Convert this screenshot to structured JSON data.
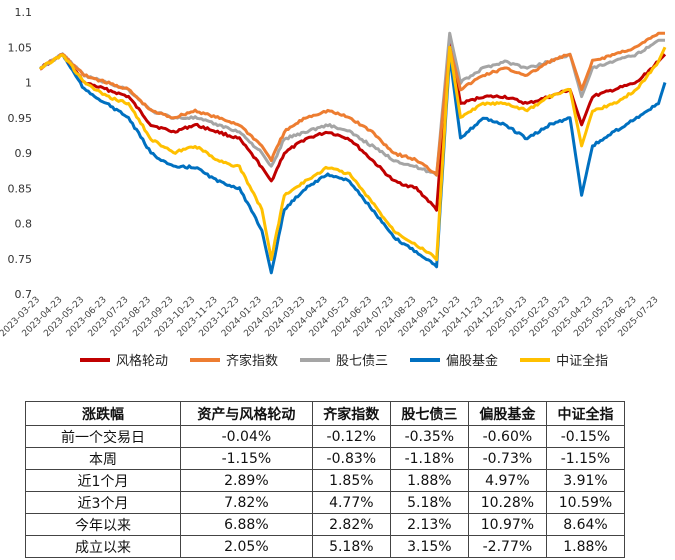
{
  "chart_data": {
    "type": "line",
    "xlabel": "",
    "ylabel": "",
    "ylim": [
      0.7,
      1.1
    ],
    "y_ticks": [
      "0.7",
      "0.75",
      "0.8",
      "0.85",
      "0.9",
      "0.95",
      "1",
      "1.05",
      "1.1"
    ],
    "x_ticks": [
      "2023-03-23",
      "2023-04-23",
      "2023-05-23",
      "2023-06-23",
      "2023-07-23",
      "2023-08-23",
      "2023-09-23",
      "2023-10-23",
      "2023-11-23",
      "2023-12-23",
      "2024-01-23",
      "2024-02-23",
      "2024-03-23",
      "2024-04-23",
      "2024-05-23",
      "2024-06-23",
      "2024-07-23",
      "2024-08-23",
      "2024-09-23",
      "2024-10-23",
      "2024-11-23",
      "2024-12-23",
      "2025-01-23",
      "2025-02-23",
      "2025-03-23",
      "2025-04-23",
      "2025-05-23",
      "2025-06-23",
      "2025-07-23"
    ],
    "x": [
      "2023-03-23",
      "2023-04-23",
      "2023-05-23",
      "2023-06-23",
      "2023-07-23",
      "2023-08-23",
      "2023-09-23",
      "2023-10-23",
      "2023-11-23",
      "2023-12-23",
      "2024-01-23",
      "2024-02-05",
      "2024-02-23",
      "2024-03-23",
      "2024-04-23",
      "2024-05-23",
      "2024-06-23",
      "2024-07-23",
      "2024-08-23",
      "2024-09-20",
      "2024-10-08",
      "2024-10-23",
      "2024-11-23",
      "2024-12-23",
      "2025-01-23",
      "2025-02-23",
      "2025-03-23",
      "2025-04-08",
      "2025-04-23",
      "2025-05-23",
      "2025-06-23",
      "2025-07-23",
      "2025-08-01"
    ],
    "series": [
      {
        "name": "风格轮动",
        "color": "#C00000",
        "values": [
          1.02,
          1.04,
          1.0,
          0.99,
          0.98,
          0.94,
          0.93,
          0.94,
          0.93,
          0.92,
          0.88,
          0.86,
          0.9,
          0.92,
          0.93,
          0.92,
          0.89,
          0.86,
          0.85,
          0.82,
          1.06,
          0.97,
          0.98,
          0.98,
          0.97,
          0.98,
          0.99,
          0.94,
          0.98,
          0.99,
          1.0,
          1.03,
          1.04
        ]
      },
      {
        "name": "齐家指数",
        "color": "#ED7D31",
        "values": [
          1.02,
          1.04,
          1.01,
          1.0,
          0.99,
          0.96,
          0.95,
          0.96,
          0.95,
          0.94,
          0.91,
          0.89,
          0.93,
          0.95,
          0.96,
          0.95,
          0.93,
          0.9,
          0.89,
          0.87,
          1.05,
          0.99,
          1.01,
          1.02,
          1.01,
          1.03,
          1.04,
          0.99,
          1.03,
          1.04,
          1.05,
          1.07,
          1.07
        ]
      },
      {
        "name": "股七债三",
        "color": "#A5A5A5",
        "values": [
          1.02,
          1.04,
          1.01,
          1.0,
          0.99,
          0.96,
          0.95,
          0.95,
          0.94,
          0.93,
          0.9,
          0.88,
          0.92,
          0.93,
          0.94,
          0.93,
          0.91,
          0.89,
          0.88,
          0.87,
          1.07,
          1.0,
          1.02,
          1.03,
          1.02,
          1.03,
          1.04,
          0.98,
          1.02,
          1.03,
          1.04,
          1.06,
          1.06
        ]
      },
      {
        "name": "偏股基金",
        "color": "#0070C0",
        "values": [
          1.02,
          1.04,
          0.99,
          0.97,
          0.95,
          0.9,
          0.88,
          0.88,
          0.86,
          0.85,
          0.79,
          0.73,
          0.82,
          0.85,
          0.87,
          0.86,
          0.82,
          0.78,
          0.76,
          0.74,
          1.04,
          0.92,
          0.95,
          0.94,
          0.92,
          0.94,
          0.95,
          0.84,
          0.91,
          0.93,
          0.95,
          0.97,
          1.0
        ]
      },
      {
        "name": "中证全指",
        "color": "#FFC000",
        "values": [
          1.02,
          1.04,
          1.0,
          0.98,
          0.97,
          0.92,
          0.9,
          0.91,
          0.89,
          0.88,
          0.82,
          0.75,
          0.84,
          0.86,
          0.88,
          0.87,
          0.83,
          0.79,
          0.77,
          0.75,
          1.05,
          0.95,
          0.97,
          0.97,
          0.96,
          0.98,
          0.99,
          0.91,
          0.96,
          0.97,
          0.99,
          1.03,
          1.05
        ]
      }
    ]
  },
  "table": {
    "headers": [
      "涨跌幅",
      "资产与风格轮动",
      "齐家指数",
      "股七债三",
      "偏股基金",
      "中证全指"
    ],
    "rows": [
      [
        "前一个交易日",
        "-0.04%",
        "-0.12%",
        "-0.35%",
        "-0.60%",
        "-0.15%"
      ],
      [
        "本周",
        "-1.15%",
        "-0.83%",
        "-1.18%",
        "-0.73%",
        "-1.15%"
      ],
      [
        "近1个月",
        "2.89%",
        "1.85%",
        "1.88%",
        "4.97%",
        "3.91%"
      ],
      [
        "近3个月",
        "7.82%",
        "4.77%",
        "5.18%",
        "10.28%",
        "10.59%"
      ],
      [
        "今年以来",
        "6.88%",
        "2.82%",
        "2.13%",
        "10.97%",
        "8.64%"
      ],
      [
        "成立以来",
        "2.05%",
        "5.18%",
        "3.15%",
        "-2.77%",
        "1.88%"
      ]
    ]
  }
}
